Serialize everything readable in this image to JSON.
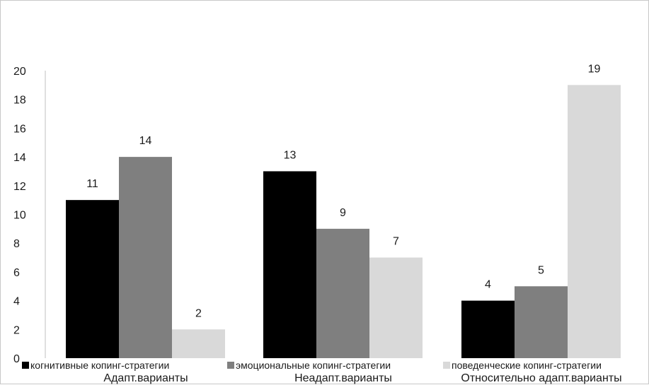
{
  "chart_data": {
    "type": "bar",
    "categories": [
      "Адапт.варианты",
      "Неадапт.варианты",
      "Относительно адапт.варианты"
    ],
    "series": [
      {
        "name": "когнитивные копинг-стратегии",
        "values": [
          11,
          13,
          4
        ],
        "color": "#000000"
      },
      {
        "name": "эмоциональные копинг-стратегии",
        "values": [
          14,
          9,
          5
        ],
        "color": "#7f7f7f"
      },
      {
        "name": "поведенческие копинг-стратегии",
        "values": [
          2,
          7,
          19
        ],
        "color": "#d9d9d9"
      }
    ],
    "yticks": [
      "0",
      "2",
      "4",
      "6",
      "8",
      "10",
      "12",
      "14",
      "16",
      "18",
      "20"
    ],
    "ylim": [
      0,
      20
    ],
    "title": "",
    "xlabel": "",
    "ylabel": "",
    "grid": false,
    "legend_position": "bottom"
  }
}
